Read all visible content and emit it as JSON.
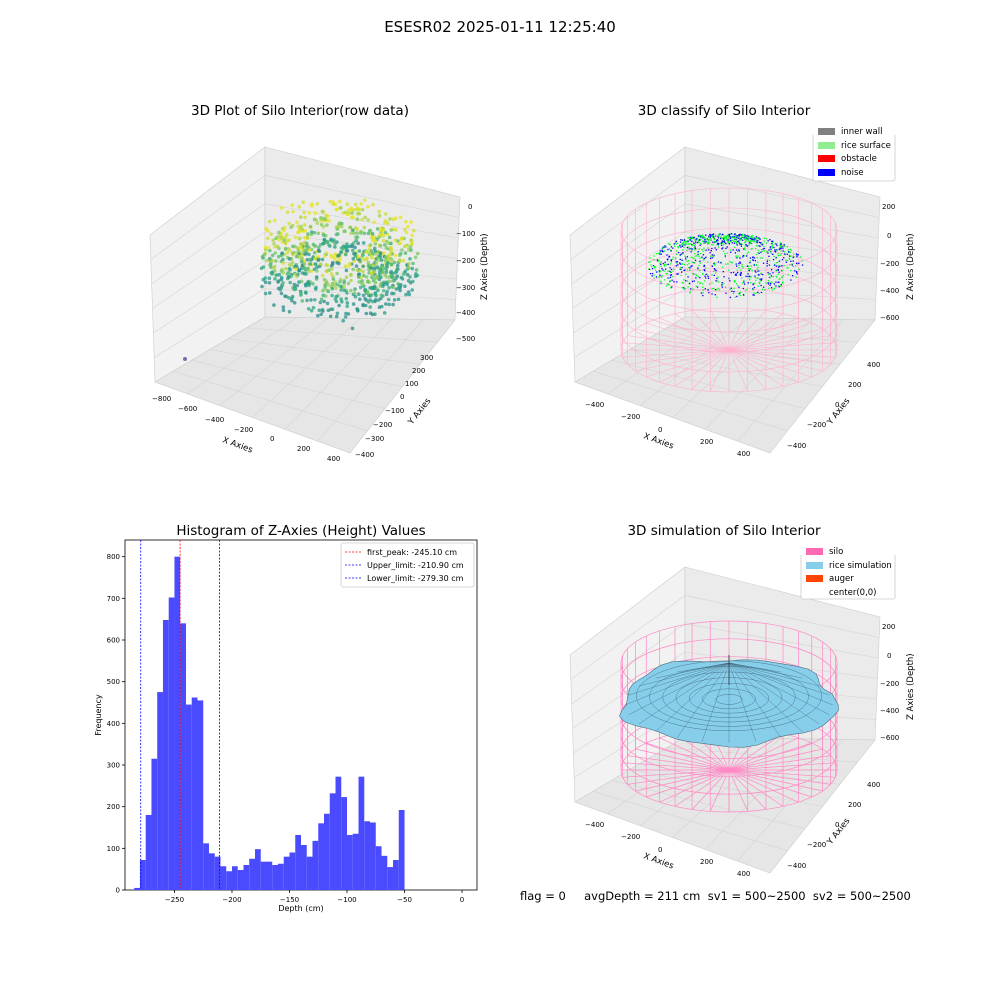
{
  "figure": {
    "title": "ESESR02 2025-01-11 12:25:40",
    "status_line": "flag = 0     avgDepth = 211 cm  sv1 = 500~2500  sv2 = 500~2500"
  },
  "colors": {
    "inner_wall": "#808080",
    "rice_surface": "#90ee90",
    "obstacle": "#ff0000",
    "noise": "#0000ff",
    "silo": "#ff69b4",
    "rice_simulation": "#87ceeb",
    "auger": "#ff4500",
    "hist_bar": "#4a4aff",
    "pane": "#ebebeb",
    "grid": "#d0d0d0"
  },
  "panels": {
    "raw": {
      "title": "3D Plot of Silo Interior(row data)",
      "xlabel": "X Axies",
      "ylabel": "Y Axies",
      "zlabel": "Z Axies (Depth)",
      "xticks": [
        "−800",
        "−600",
        "−400",
        "−200",
        "0",
        "200",
        "400"
      ],
      "yticks": [
        "300",
        "200",
        "100",
        "0",
        "−100",
        "−200",
        "−300",
        "−400"
      ],
      "zticks": [
        "0",
        "−100",
        "−200",
        "−300",
        "−400",
        "−500"
      ]
    },
    "classify": {
      "title": "3D classify of Silo Interior",
      "xlabel": "X Axies",
      "ylabel": "Y Axies",
      "zlabel": "Z Axies (Depth)",
      "xticks": [
        "−400",
        "−200",
        "0",
        "200",
        "400"
      ],
      "yticks": [
        "400",
        "200",
        "0",
        "−200",
        "−400"
      ],
      "zticks": [
        "200",
        "0",
        "−200",
        "−400",
        "−600"
      ],
      "legend": [
        "inner wall",
        "rice surface",
        "obstacle",
        "noise"
      ]
    },
    "simulation": {
      "title": "3D simulation of Silo Interior",
      "xlabel": "X Axies",
      "ylabel": "Y Axies",
      "zlabel": "Z Axies (Depth)",
      "xticks": [
        "−400",
        "−200",
        "0",
        "200",
        "400"
      ],
      "yticks": [
        "400",
        "200",
        "0",
        "−200",
        "−400"
      ],
      "zticks": [
        "200",
        "0",
        "−200",
        "−400",
        "−600"
      ],
      "legend": [
        "silo",
        "rice simulation",
        "auger",
        "center(0,0)"
      ]
    }
  },
  "chart_data": [
    {
      "type": "bar",
      "title": "Histogram of Z-Axies (Height) Values",
      "xlabel": "Depth (cm)",
      "ylabel": "Frequency",
      "xlim": [
        -293,
        13
      ],
      "ylim": [
        0,
        840
      ],
      "xticks": [
        -250,
        -200,
        -150,
        -100,
        -50,
        0
      ],
      "yticks": [
        0,
        100,
        200,
        300,
        400,
        500,
        600,
        700,
        800
      ],
      "bin_width": 5,
      "bin_start": -285,
      "values": [
        5,
        72,
        180,
        315,
        475,
        648,
        702,
        800,
        640,
        445,
        462,
        455,
        112,
        88,
        80,
        57,
        45,
        57,
        48,
        60,
        75,
        98,
        68,
        68,
        60,
        63,
        80,
        90,
        132,
        108,
        80,
        118,
        160,
        183,
        232,
        272,
        223,
        132,
        135,
        272,
        165,
        162,
        105,
        82,
        55,
        72,
        192
      ],
      "lines": [
        {
          "name": "first_peak",
          "label": "first_peak: -245.10 cm",
          "x": -245.1,
          "color": "#ff0000"
        },
        {
          "name": "upper_limit",
          "label": "Upper_limit: -210.90 cm",
          "x": -210.9,
          "color": "#0000ff"
        },
        {
          "name": "lower_limit",
          "label": "Lower_limit: -279.30 cm",
          "x": -279.3,
          "color": "#0000ff"
        }
      ],
      "grid": false,
      "legend_position": "upper right"
    }
  ]
}
